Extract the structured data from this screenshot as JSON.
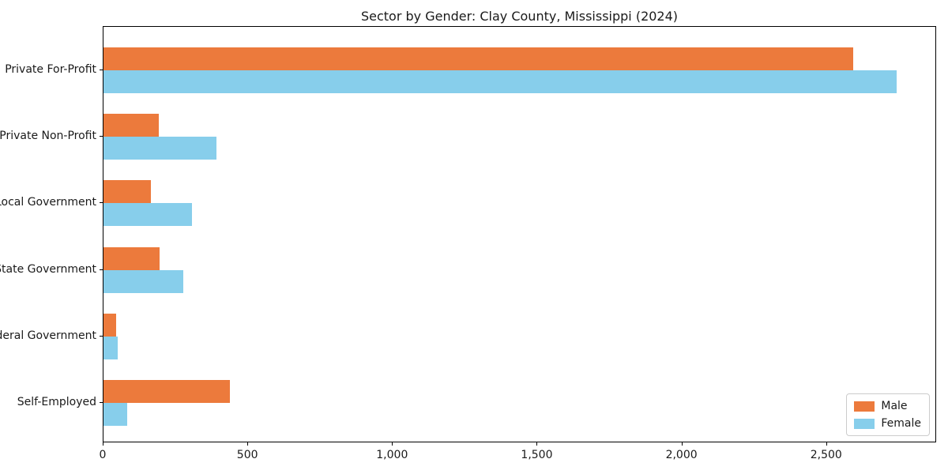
{
  "title": "Sector by Gender: Clay County, Mississippi (2024)",
  "colors": {
    "male": "#ec7a3c",
    "female": "#87ceeb",
    "axis": "#000000",
    "legend_border": "#cccccc"
  },
  "chart_data": {
    "type": "bar",
    "orientation": "horizontal",
    "title": "Sector by Gender: Clay County, Mississippi (2024)",
    "categories": [
      "Private For-Profit",
      "Private Non-Profit",
      "Local Government",
      "State Government",
      "Federal Government",
      "Self-Employed"
    ],
    "series": [
      {
        "name": "Male",
        "color": "#ec7a3c",
        "values": [
          2590,
          190,
          165,
          193,
          43,
          437
        ]
      },
      {
        "name": "Female",
        "color": "#87ceeb",
        "values": [
          2741,
          390,
          307,
          277,
          49,
          82
        ]
      }
    ],
    "xlabel": "",
    "ylabel": "",
    "xlim": [
      0,
      2880
    ],
    "x_ticks": [
      {
        "value": 0,
        "label": "0"
      },
      {
        "value": 500,
        "label": "500"
      },
      {
        "value": 1000,
        "label": "1,000"
      },
      {
        "value": 1500,
        "label": "1,500"
      },
      {
        "value": 2000,
        "label": "2,000"
      },
      {
        "value": 2500,
        "label": "2,500"
      }
    ],
    "grid": false,
    "legend_position": "lower right"
  }
}
